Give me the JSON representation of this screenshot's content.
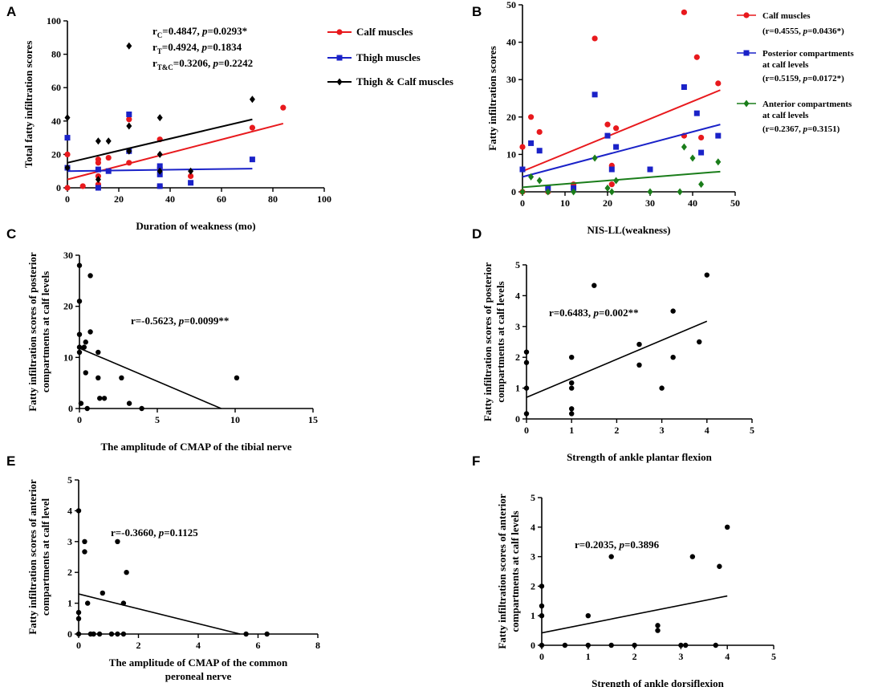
{
  "chart_data": [
    {
      "id": "A",
      "type": "scatter",
      "panel_label": "A",
      "xlabel": "Duration of weakness (mo)",
      "ylabel": "Total fatty infiltration scores",
      "xlim": [
        0,
        100
      ],
      "ylim": [
        0,
        100
      ],
      "xticks": [
        0,
        20,
        40,
        60,
        80,
        100
      ],
      "yticks": [
        0,
        20,
        40,
        60,
        80,
        100
      ],
      "annotations": [
        {
          "r_sym": "r",
          "r_sub": "C",
          "r_val": "=0.4847, ",
          "p_sym": "p",
          "p_val": "=0.0293*"
        },
        {
          "r_sym": "r",
          "r_sub": "T",
          "r_val": "=0.4924, ",
          "p_sym": "p",
          "p_val": "=0.1834"
        },
        {
          "r_sym": "r",
          "r_sub": "T&C",
          "r_val": "=0.3206, ",
          "p_sym": "p",
          "p_val": "=0.2242"
        }
      ],
      "series": [
        {
          "name": "Calf muscles",
          "color": "#e8191d",
          "marker": "circle",
          "points": [
            [
              0,
              0
            ],
            [
              0,
              12
            ],
            [
              0,
              20
            ],
            [
              6,
              1
            ],
            [
              12,
              0
            ],
            [
              12,
              2
            ],
            [
              12,
              7
            ],
            [
              12,
              15
            ],
            [
              12,
              17
            ],
            [
              16,
              18
            ],
            [
              24,
              15
            ],
            [
              24,
              41
            ],
            [
              36,
              1
            ],
            [
              36,
              12
            ],
            [
              36,
              29
            ],
            [
              48,
              7
            ],
            [
              72,
              36
            ],
            [
              84,
              48
            ]
          ],
          "fit": [
            [
              0,
              5
            ],
            [
              84,
              38.5
            ]
          ]
        },
        {
          "name": "Thigh muscles",
          "color": "#1a22c8",
          "marker": "square",
          "points": [
            [
              0,
              30
            ],
            [
              0,
              12
            ],
            [
              12,
              0
            ],
            [
              12,
              11
            ],
            [
              16,
              10
            ],
            [
              24,
              22
            ],
            [
              24,
              44
            ],
            [
              36,
              8
            ],
            [
              36,
              13
            ],
            [
              36,
              1
            ],
            [
              48,
              3
            ],
            [
              72,
              17
            ]
          ],
          "fit": [
            [
              0,
              10
            ],
            [
              72,
              11.5
            ]
          ]
        },
        {
          "name": "Thigh & Calf muscles",
          "color": "#000000",
          "marker": "diamond",
          "points": [
            [
              0,
              42
            ],
            [
              0,
              12
            ],
            [
              12,
              28
            ],
            [
              12,
              5
            ],
            [
              16,
              28
            ],
            [
              24,
              85
            ],
            [
              24,
              37
            ],
            [
              24,
              22
            ],
            [
              36,
              42
            ],
            [
              36,
              20
            ],
            [
              36,
              10
            ],
            [
              48,
              10
            ],
            [
              72,
              53
            ]
          ],
          "fit": [
            [
              0,
              15
            ],
            [
              72,
              41
            ]
          ]
        }
      ]
    },
    {
      "id": "B",
      "type": "scatter",
      "panel_label": "B",
      "xlabel": "NIS-LL(weakness)",
      "ylabel": "Fatty infiltration scores",
      "xlim": [
        0,
        50
      ],
      "ylim": [
        0,
        50
      ],
      "xticks": [
        0,
        10,
        20,
        30,
        40,
        50
      ],
      "yticks": [
        0,
        10,
        20,
        30,
        40,
        50
      ],
      "series": [
        {
          "name": "Calf muscles",
          "stat": "(r=0.4555, p=0.0436*)",
          "stat_pre": "(r=0.4555, ",
          "stat_p": "p",
          "stat_post": "=0.0436*)",
          "color": "#e8191d",
          "marker": "circle",
          "points": [
            [
              0,
              0
            ],
            [
              0,
              12
            ],
            [
              2,
              20
            ],
            [
              4,
              16
            ],
            [
              6,
              0
            ],
            [
              12,
              2
            ],
            [
              17,
              41
            ],
            [
              20,
              18
            ],
            [
              21,
              7
            ],
            [
              21,
              2
            ],
            [
              22,
              17
            ],
            [
              30,
              6
            ],
            [
              38,
              48
            ],
            [
              38,
              15
            ],
            [
              41,
              36
            ],
            [
              42,
              14.5
            ],
            [
              46,
              29
            ]
          ],
          "fit": [
            [
              0,
              5.5
            ],
            [
              46.5,
              27.2
            ]
          ]
        },
        {
          "name": "Posterior compartments at calf levels",
          "name_lines": [
            "Posterior compartments",
            "at calf levels"
          ],
          "stat": "(r=0.5159, p=0.0172*)",
          "stat_pre": "(r=0.5159, ",
          "stat_p": "p",
          "stat_post": "=0.0172*)",
          "color": "#1a22c8",
          "marker": "square",
          "points": [
            [
              0,
              6
            ],
            [
              2,
              13
            ],
            [
              4,
              11
            ],
            [
              6,
              1
            ],
            [
              12,
              1
            ],
            [
              17,
              26
            ],
            [
              20,
              15
            ],
            [
              21,
              6
            ],
            [
              22,
              12
            ],
            [
              30,
              6
            ],
            [
              38,
              28
            ],
            [
              41,
              21
            ],
            [
              42,
              10.5
            ],
            [
              46,
              15
            ]
          ],
          "fit": [
            [
              0,
              4
            ],
            [
              46.5,
              18
            ]
          ]
        },
        {
          "name": "Anterior compartments at calf levels",
          "name_lines": [
            "Anterior compartments",
            "at calf levels"
          ],
          "stat": "(r=0.2367, p=0.3151)",
          "stat_pre": "(r=0.2367, ",
          "stat_p": "p",
          "stat_post": "=0.3151)",
          "color": "#1a7d1a",
          "marker": "diamond",
          "points": [
            [
              0,
              0
            ],
            [
              2,
              4
            ],
            [
              4,
              3
            ],
            [
              6,
              0
            ],
            [
              12,
              0
            ],
            [
              17,
              9
            ],
            [
              20,
              1
            ],
            [
              21,
              0
            ],
            [
              22,
              3
            ],
            [
              30,
              0
            ],
            [
              37,
              0
            ],
            [
              38,
              12
            ],
            [
              40,
              9
            ],
            [
              42,
              2
            ],
            [
              46,
              8
            ]
          ],
          "fit": [
            [
              0,
              1.2
            ],
            [
              46.5,
              5.4
            ]
          ]
        }
      ]
    },
    {
      "id": "C",
      "type": "scatter",
      "panel_label": "C",
      "xlabel": "The amplitude of CMAP of the tibial nerve",
      "ylabel_lines": [
        "Fatty infiltration scores of posterior",
        "compartments at calf levels"
      ],
      "xlim": [
        0,
        15
      ],
      "ylim": [
        0,
        30
      ],
      "xticks": [
        0,
        5,
        10,
        15
      ],
      "yticks": [
        0,
        10,
        20,
        30
      ],
      "annotation": {
        "pre": "r=-0.5623, ",
        "p": "p",
        "post": "=0.0099**"
      },
      "points": [
        [
          0,
          28
        ],
        [
          0,
          21
        ],
        [
          0,
          14.5
        ],
        [
          0,
          12
        ],
        [
          0,
          11
        ],
        [
          0.1,
          1
        ],
        [
          0.3,
          12
        ],
        [
          0.4,
          13
        ],
        [
          0.4,
          7
        ],
        [
          0.5,
          0
        ],
        [
          0.7,
          15
        ],
        [
          0.7,
          26
        ],
        [
          1.2,
          11
        ],
        [
          1.2,
          6
        ],
        [
          1.3,
          2
        ],
        [
          1.6,
          2
        ],
        [
          2.7,
          6
        ],
        [
          3.2,
          1
        ],
        [
          4,
          0
        ],
        [
          10.1,
          6
        ]
      ],
      "fit": [
        [
          0,
          11.8
        ],
        [
          9.1,
          0
        ]
      ]
    },
    {
      "id": "D",
      "type": "scatter",
      "panel_label": "D",
      "xlabel": "Strength of ankle plantar  flexion",
      "ylabel_lines": [
        "Fatty infiltration scores of posterior",
        "compartments at calf levels"
      ],
      "xlim": [
        0,
        5
      ],
      "ylim": [
        0,
        5
      ],
      "xticks": [
        0,
        1,
        2,
        3,
        4,
        5
      ],
      "yticks": [
        0,
        1,
        2,
        3,
        4,
        5
      ],
      "annotation": {
        "pre": "r=0.6483, ",
        "p": "p",
        "post": "=0.002**"
      },
      "points": [
        [
          0,
          0.17
        ],
        [
          0,
          1
        ],
        [
          0,
          1.83
        ],
        [
          0,
          2.17
        ],
        [
          1,
          0.17
        ],
        [
          1,
          0.33
        ],
        [
          1,
          1
        ],
        [
          1,
          1.17
        ],
        [
          1,
          2
        ],
        [
          1.5,
          4.33
        ],
        [
          2.5,
          1.75
        ],
        [
          2.5,
          2.42
        ],
        [
          3,
          1
        ],
        [
          3.25,
          2
        ],
        [
          3.25,
          3.5
        ],
        [
          3.83,
          2.5
        ],
        [
          4,
          4.67
        ]
      ],
      "fit": [
        [
          0,
          0.7
        ],
        [
          4,
          3.17
        ]
      ]
    },
    {
      "id": "E",
      "type": "scatter",
      "panel_label": "E",
      "xlabel_lines": [
        "The amplitude of CMAP of the common",
        "peroneal nerve"
      ],
      "ylabel_lines": [
        "Fatty infiltration scores of anterior",
        "compartments at calf level"
      ],
      "xlim": [
        0,
        8
      ],
      "ylim": [
        0,
        5
      ],
      "xticks": [
        0,
        2,
        4,
        6,
        8
      ],
      "yticks": [
        0,
        1,
        2,
        3,
        4,
        5
      ],
      "annotation": {
        "pre": "r=-0.3660, ",
        "p": "p",
        "post": "=0.1125"
      },
      "points": [
        [
          0,
          4
        ],
        [
          0,
          0.7
        ],
        [
          0,
          0.5
        ],
        [
          0,
          0
        ],
        [
          0.2,
          3
        ],
        [
          0.2,
          2.67
        ],
        [
          0.3,
          1
        ],
        [
          0.4,
          0
        ],
        [
          0.5,
          0
        ],
        [
          0.7,
          0
        ],
        [
          0.8,
          1.33
        ],
        [
          1.1,
          0
        ],
        [
          1.3,
          3
        ],
        [
          1.3,
          0
        ],
        [
          1.5,
          0
        ],
        [
          1.5,
          1
        ],
        [
          1.6,
          2
        ],
        [
          5.6,
          0
        ],
        [
          6.3,
          0
        ]
      ],
      "fit": [
        [
          0,
          1.3
        ],
        [
          5.4,
          0
        ]
      ]
    },
    {
      "id": "F",
      "type": "scatter",
      "panel_label": "F",
      "xlabel": "Strength of ankle dorsiflexion",
      "ylabel_lines": [
        "Fatty infiltration scores of anterior",
        "compartments at calf levels"
      ],
      "xlim": [
        0,
        5
      ],
      "ylim": [
        0,
        5
      ],
      "xticks": [
        0,
        1,
        2,
        3,
        4,
        5
      ],
      "yticks": [
        0,
        1,
        2,
        3,
        4,
        5
      ],
      "annotation": {
        "pre": "r=0.2035, ",
        "p": "p",
        "post": "=0.3896"
      },
      "points": [
        [
          0,
          2
        ],
        [
          0,
          1.33
        ],
        [
          0,
          1
        ],
        [
          0,
          0
        ],
        [
          0.5,
          0
        ],
        [
          1,
          1
        ],
        [
          1,
          0
        ],
        [
          1.5,
          3
        ],
        [
          1.5,
          0
        ],
        [
          2,
          0
        ],
        [
          2.5,
          0.67
        ],
        [
          2.5,
          0.5
        ],
        [
          3,
          0
        ],
        [
          3.1,
          0
        ],
        [
          3.25,
          3
        ],
        [
          3.75,
          0
        ],
        [
          3.83,
          2.67
        ],
        [
          4,
          4
        ]
      ],
      "fit": [
        [
          0,
          0.42
        ],
        [
          4,
          1.67
        ]
      ]
    }
  ]
}
